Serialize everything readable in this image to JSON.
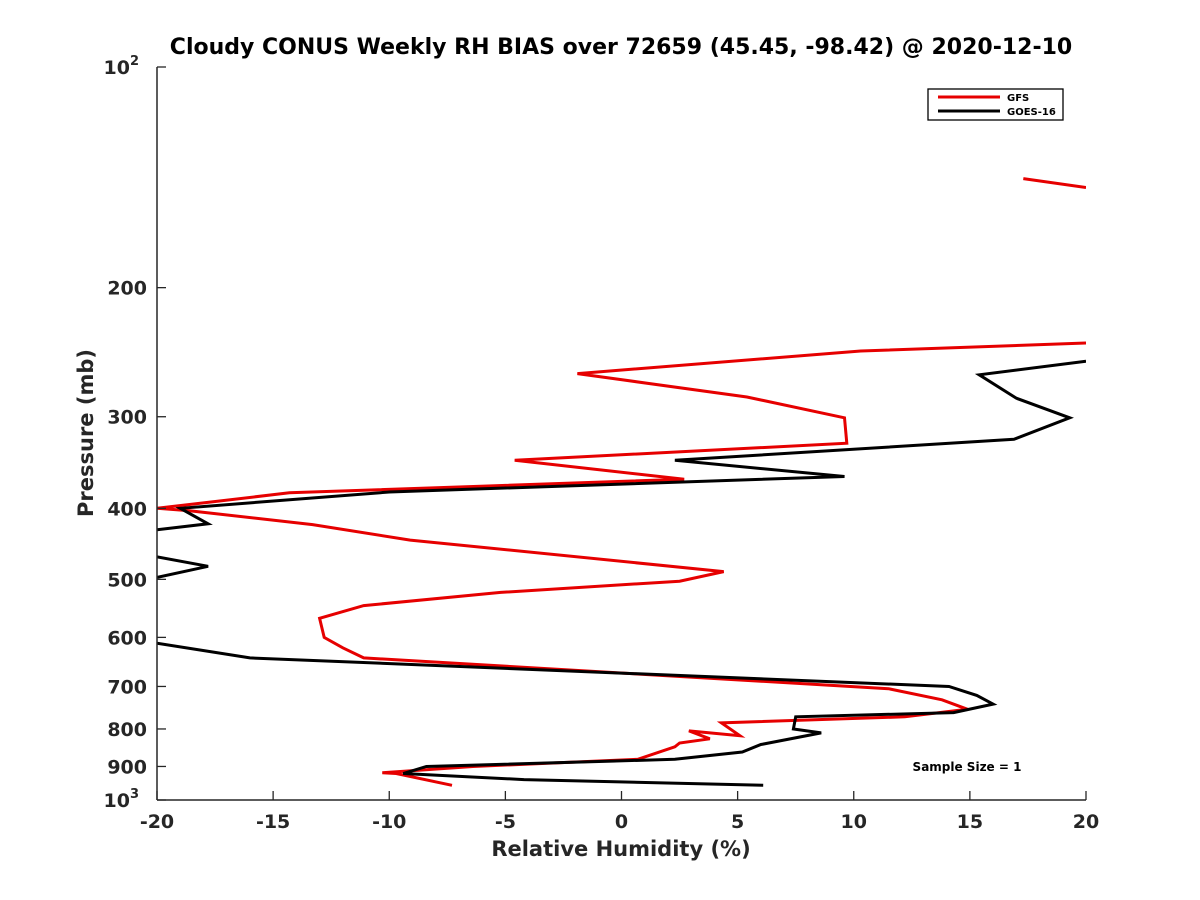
{
  "chart_data": {
    "type": "line",
    "title": "Cloudy CONUS Weekly RH BIAS over 72659 (45.45, -98.42) @ 2020-12-10",
    "xlabel": "Relative Humidity (%)",
    "ylabel": "Pressure (mb)",
    "xlim": [
      -20,
      20
    ],
    "ylim": [
      100,
      1000
    ],
    "yscale": "log",
    "yreversed": true,
    "grid": false,
    "legend_position": "top-right",
    "x_ticks": [
      -20,
      -15,
      -10,
      -5,
      0,
      5,
      10,
      15,
      20
    ],
    "x_tick_labels": [
      "-20",
      "-15",
      "-10",
      "-5",
      "0",
      "5",
      "10",
      "15",
      "20"
    ],
    "y_ticks": [
      {
        "value": 100,
        "base": "10",
        "exp": "2"
      },
      {
        "value": 200,
        "label": "200"
      },
      {
        "value": 300,
        "label": "300"
      },
      {
        "value": 400,
        "label": "400"
      },
      {
        "value": 500,
        "label": "500"
      },
      {
        "value": 600,
        "label": "600"
      },
      {
        "value": 700,
        "label": "700"
      },
      {
        "value": 800,
        "label": "800"
      },
      {
        "value": 900,
        "label": "900"
      },
      {
        "value": 1000,
        "base": "10",
        "exp": "3"
      }
    ],
    "series": [
      {
        "name": "GFS",
        "color": "#e60000",
        "segments": [
          [
            [
              17.3,
              142
            ],
            [
              20,
              146
            ]
          ],
          [
            [
              20,
              238
            ],
            [
              10.3,
              244
            ],
            [
              -1.9,
              262
            ],
            [
              5.4,
              282
            ],
            [
              9.6,
              301
            ],
            [
              9.7,
              326
            ],
            [
              -4.6,
              344
            ],
            [
              2.7,
              365
            ],
            [
              -5.9,
              373
            ],
            [
              -14.3,
              381
            ],
            [
              -20,
              400
            ],
            [
              -18.6,
              403
            ],
            [
              -13.3,
              421
            ],
            [
              -9.1,
              442
            ],
            [
              4.4,
              488
            ],
            [
              2.5,
              503
            ],
            [
              -5.2,
              521
            ],
            [
              -11.1,
              543
            ],
            [
              -13.0,
              565
            ],
            [
              -12.8,
              600
            ],
            [
              -12.0,
              620
            ],
            [
              -11.1,
              640
            ],
            [
              11.5,
              705
            ],
            [
              13.8,
              730
            ],
            [
              14.9,
              752
            ],
            [
              12.2,
              770
            ],
            [
              4.3,
              785
            ],
            [
              5.1,
              817
            ],
            [
              2.9,
              805
            ],
            [
              3.8,
              825
            ],
            [
              2.5,
              836
            ],
            [
              2.3,
              846
            ],
            [
              0.7,
              880
            ],
            [
              -6.4,
              900
            ],
            [
              -10.3,
              918
            ],
            [
              -9.7,
              920
            ],
            [
              -7.3,
              955
            ]
          ]
        ]
      },
      {
        "name": "GOES-16",
        "color": "#000000",
        "segments": [
          [
            [
              20,
              252
            ],
            [
              15.4,
              263
            ],
            [
              17.0,
              283
            ],
            [
              19.3,
              301
            ],
            [
              16.9,
              322
            ],
            [
              2.3,
              344
            ],
            [
              9.6,
              362
            ],
            [
              -10.0,
              380
            ],
            [
              -19.0,
              400
            ],
            [
              -17.8,
              420
            ],
            [
              -20,
              428
            ]
          ],
          [
            [
              -20,
              466
            ],
            [
              -17.8,
              480
            ],
            [
              -20,
              497
            ]
          ],
          [
            [
              -20,
              611
            ],
            [
              -16.0,
              640
            ],
            [
              14.1,
              700
            ],
            [
              15.3,
              720
            ],
            [
              16.0,
              740
            ],
            [
              14.3,
              760
            ],
            [
              7.5,
              770
            ],
            [
              7.4,
              800
            ],
            [
              8.6,
              810
            ],
            [
              6.0,
              840
            ],
            [
              5.2,
              860
            ],
            [
              2.3,
              880
            ],
            [
              -8.4,
              900
            ],
            [
              -9.4,
              920
            ],
            [
              -4.2,
              938
            ],
            [
              6.1,
              955
            ]
          ]
        ]
      }
    ],
    "annotations": [
      {
        "text": "Sample Size = 1"
      }
    ]
  }
}
